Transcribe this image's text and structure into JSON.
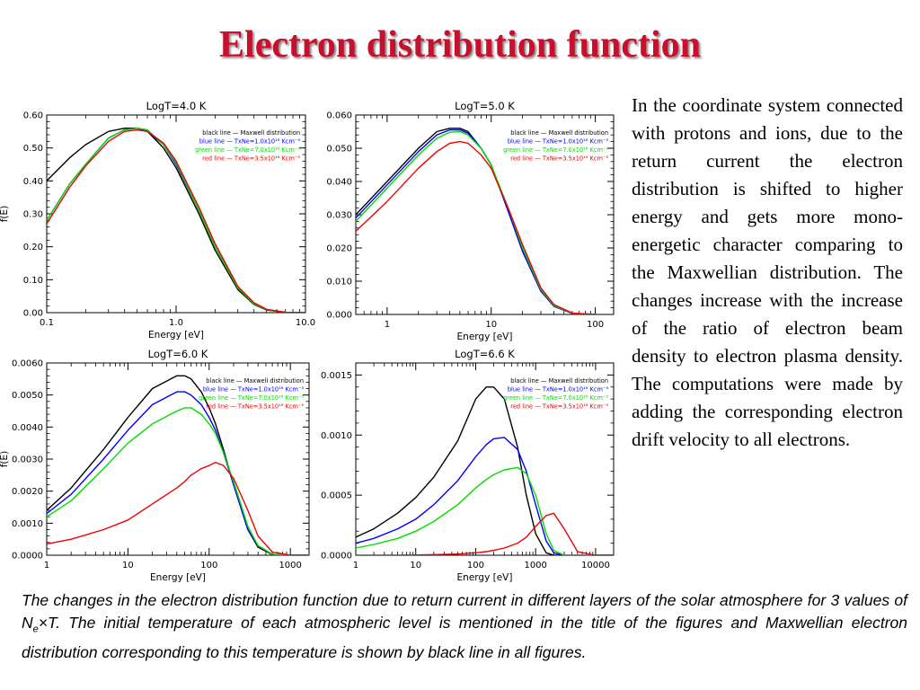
{
  "title": "Electron distribution function",
  "description": "In the coordinate system connected with protons and ions, due to the return current the electron distribution is shifted to higher energy and gets more mono-energetic character comparing to the Maxwellian distribution. The changes increase with the increase of the ratio of electron beam density to electron plasma density. The computations were made by adding the corresponding electron drift velocity to all electrons.",
  "caption": {
    "part1": "The changes in the electron distribution function due to return current in different layers of the solar atmosphere for 3 values of  N",
    "sub": "e",
    "part2": "×T. The initial temperature of each atmospheric level is mentioned in the title of the figures and Maxwellian electron distribution corresponding to this temperature is shown by black line in all figures."
  },
  "colors": {
    "title": "#c8102e",
    "maxwell": "#000000",
    "blue": "#0000ff",
    "green": "#00dd00",
    "red": "#ee0000"
  },
  "legend": {
    "entries": [
      {
        "text": "black line  — Maxwell distribution",
        "color": "#000000"
      },
      {
        "text": "blue line  — TxNe=1.0x10¹⁶ Kcm⁻³",
        "color": "#0000ff"
      },
      {
        "text": "green line  — TxNe=7.0x10¹⁶ Kcm⁻³",
        "color": "#00dd00"
      },
      {
        "text": "red line  — TxNe=3.5x10¹⁶ Kcm⁻³",
        "color": "#ee0000"
      }
    ]
  },
  "chart_data": [
    {
      "type": "line",
      "title": "LogT=4.0  K",
      "xlabel": "Energy   [eV]",
      "ylabel": "f(E)",
      "xscale": "log",
      "xlim": [
        0.1,
        10
      ],
      "ylim": [
        0,
        0.6
      ],
      "xticks": [
        0.1,
        1,
        10
      ],
      "xtick_labels": [
        "0.1",
        "1.0",
        "10.0"
      ],
      "yticks": [
        0,
        0.1,
        0.2,
        0.3,
        0.4,
        0.5,
        0.6
      ],
      "ytick_labels": [
        "0.00",
        "0.10",
        "0.20",
        "0.30",
        "0.40",
        "0.50",
        "0.60"
      ],
      "x": [
        0.1,
        0.15,
        0.2,
        0.3,
        0.4,
        0.5,
        0.6,
        0.8,
        1,
        1.5,
        2,
        3,
        4,
        5,
        7,
        10
      ],
      "series": [
        {
          "name": "black line",
          "color": "#000000",
          "values": [
            0.4,
            0.47,
            0.51,
            0.55,
            0.56,
            0.56,
            0.55,
            0.5,
            0.44,
            0.3,
            0.19,
            0.07,
            0.025,
            0.008,
            0.001,
            0
          ]
        },
        {
          "name": "blue line",
          "color": "#0000ff",
          "values": [
            0.28,
            0.39,
            0.45,
            0.53,
            0.555,
            0.56,
            0.55,
            0.51,
            0.45,
            0.31,
            0.2,
            0.075,
            0.027,
            0.009,
            0.001,
            0
          ]
        },
        {
          "name": "green line",
          "color": "#00dd00",
          "values": [
            0.28,
            0.39,
            0.45,
            0.53,
            0.555,
            0.56,
            0.555,
            0.51,
            0.455,
            0.31,
            0.2,
            0.075,
            0.027,
            0.009,
            0.001,
            0
          ]
        },
        {
          "name": "red line",
          "color": "#ee0000",
          "values": [
            0.27,
            0.38,
            0.445,
            0.52,
            0.55,
            0.555,
            0.55,
            0.515,
            0.46,
            0.32,
            0.21,
            0.08,
            0.03,
            0.01,
            0.001,
            0
          ]
        }
      ]
    },
    {
      "type": "line",
      "title": "LogT=5.0  K",
      "xlabel": "Energy   [eV]",
      "ylabel": "",
      "xscale": "log",
      "xlim": [
        0.5,
        150
      ],
      "ylim": [
        0,
        0.06
      ],
      "xticks": [
        1,
        10,
        100
      ],
      "xtick_labels": [
        "1",
        "10",
        "100"
      ],
      "yticks": [
        0,
        0.01,
        0.02,
        0.03,
        0.04,
        0.05,
        0.06
      ],
      "ytick_labels": [
        "0.000",
        "0.010",
        "0.020",
        "0.030",
        "0.040",
        "0.050",
        "0.060"
      ],
      "x": [
        0.5,
        1,
        2,
        3,
        4,
        5,
        6,
        8,
        10,
        15,
        20,
        30,
        40,
        60,
        100
      ],
      "series": [
        {
          "name": "black line",
          "color": "#000000",
          "values": [
            0.03,
            0.04,
            0.05,
            0.055,
            0.056,
            0.056,
            0.055,
            0.05,
            0.045,
            0.03,
            0.019,
            0.007,
            0.0025,
            0.0003,
            0
          ]
        },
        {
          "name": "blue line",
          "color": "#0000ff",
          "values": [
            0.029,
            0.039,
            0.049,
            0.054,
            0.0555,
            0.0555,
            0.0545,
            0.05,
            0.045,
            0.03,
            0.019,
            0.007,
            0.0025,
            0.0003,
            0
          ]
        },
        {
          "name": "green line",
          "color": "#00dd00",
          "values": [
            0.028,
            0.038,
            0.048,
            0.053,
            0.0548,
            0.055,
            0.054,
            0.05,
            0.045,
            0.031,
            0.02,
            0.0075,
            0.0027,
            0.0003,
            0
          ]
        },
        {
          "name": "red line",
          "color": "#ee0000",
          "values": [
            0.025,
            0.034,
            0.044,
            0.049,
            0.0515,
            0.052,
            0.0515,
            0.048,
            0.044,
            0.031,
            0.021,
            0.008,
            0.003,
            0.0004,
            0
          ]
        }
      ]
    },
    {
      "type": "line",
      "title": "LogT=6.0  K",
      "xlabel": "Energy   [eV]",
      "ylabel": "f(E)",
      "xscale": "log",
      "xlim": [
        1,
        1700
      ],
      "ylim": [
        0,
        0.006
      ],
      "xticks": [
        1,
        10,
        100,
        1000
      ],
      "xtick_labels": [
        "1",
        "10",
        "100",
        "1000"
      ],
      "yticks": [
        0,
        0.001,
        0.002,
        0.003,
        0.004,
        0.005,
        0.006
      ],
      "ytick_labels": [
        "0.0000",
        "0.0010",
        "0.0020",
        "0.0030",
        "0.0040",
        "0.0050",
        "0.0060"
      ],
      "x": [
        1,
        2,
        5,
        10,
        20,
        40,
        50,
        60,
        80,
        100,
        120,
        150,
        200,
        300,
        400,
        600,
        1000,
        1700
      ],
      "series": [
        {
          "name": "black line",
          "color": "#000000",
          "values": [
            0.0014,
            0.0021,
            0.0033,
            0.0043,
            0.0052,
            0.0056,
            0.0056,
            0.0055,
            0.0051,
            0.0046,
            0.0041,
            0.0033,
            0.0022,
            0.0008,
            0.00025,
            2e-05,
            0,
            0
          ]
        },
        {
          "name": "blue line",
          "color": "#0000ff",
          "values": [
            0.0013,
            0.0019,
            0.003,
            0.0039,
            0.0047,
            0.0051,
            0.0051,
            0.005,
            0.0047,
            0.0043,
            0.0039,
            0.0032,
            0.0022,
            0.0008,
            0.0003,
            3e-05,
            0,
            0
          ]
        },
        {
          "name": "green line",
          "color": "#00dd00",
          "values": [
            0.0012,
            0.0017,
            0.0027,
            0.0035,
            0.0041,
            0.0045,
            0.0046,
            0.0046,
            0.0044,
            0.0041,
            0.0038,
            0.0032,
            0.0023,
            0.0009,
            0.0003,
            3e-05,
            0,
            0
          ]
        },
        {
          "name": "red line",
          "color": "#ee0000",
          "values": [
            0.00035,
            0.0005,
            0.0008,
            0.0011,
            0.0016,
            0.0021,
            0.0023,
            0.0025,
            0.0027,
            0.0028,
            0.0029,
            0.0028,
            0.0024,
            0.0014,
            0.0006,
            0.0001,
            0,
            0
          ]
        }
      ]
    },
    {
      "type": "line",
      "title": "LogT=6.6  K",
      "xlabel": "Energy   [eV]",
      "ylabel": "",
      "xscale": "log",
      "xlim": [
        1,
        20000
      ],
      "ylim": [
        0,
        0.0016
      ],
      "xticks": [
        1,
        10,
        100,
        1000,
        10000
      ],
      "xtick_labels": [
        "1",
        "10",
        "100",
        "1000",
        "10000"
      ],
      "yticks": [
        0,
        0.0005,
        0.001,
        0.0015
      ],
      "ytick_labels": [
        "0.0000",
        "0.0005",
        "0.0010",
        "0.0015"
      ],
      "x": [
        1,
        2,
        5,
        10,
        20,
        50,
        100,
        150,
        200,
        300,
        500,
        700,
        1000,
        1500,
        2000,
        3000,
        5000,
        10000,
        20000
      ],
      "series": [
        {
          "name": "black line",
          "color": "#000000",
          "values": [
            0.00015,
            0.00022,
            0.00035,
            0.00048,
            0.00065,
            0.00095,
            0.0013,
            0.0014,
            0.0014,
            0.0013,
            0.0009,
            0.0005,
            0.00018,
            2e-05,
            0,
            0,
            0,
            0,
            0
          ]
        },
        {
          "name": "blue line",
          "color": "#0000ff",
          "values": [
            0.0001,
            0.00014,
            0.00022,
            0.0003,
            0.00042,
            0.00062,
            0.00082,
            0.00092,
            0.00097,
            0.00098,
            0.00088,
            0.0007,
            0.00042,
            0.00012,
            2e-05,
            0,
            0,
            0,
            0
          ]
        },
        {
          "name": "green line",
          "color": "#00dd00",
          "values": [
            6e-05,
            9e-05,
            0.00014,
            0.0002,
            0.00028,
            0.00042,
            0.00056,
            0.00063,
            0.00067,
            0.00071,
            0.00073,
            0.00068,
            0.0005,
            0.00018,
            4e-05,
            0,
            0,
            0,
            0
          ]
        },
        {
          "name": "red line",
          "color": "#ee0000",
          "values": [
            0,
            0,
            0,
            2e-06,
            5e-06,
            1e-05,
            2e-05,
            3e-05,
            4e-05,
            6e-05,
            0.0001,
            0.00015,
            0.00024,
            0.00033,
            0.00035,
            0.00022,
            3e-05,
            0,
            0
          ]
        }
      ]
    }
  ]
}
